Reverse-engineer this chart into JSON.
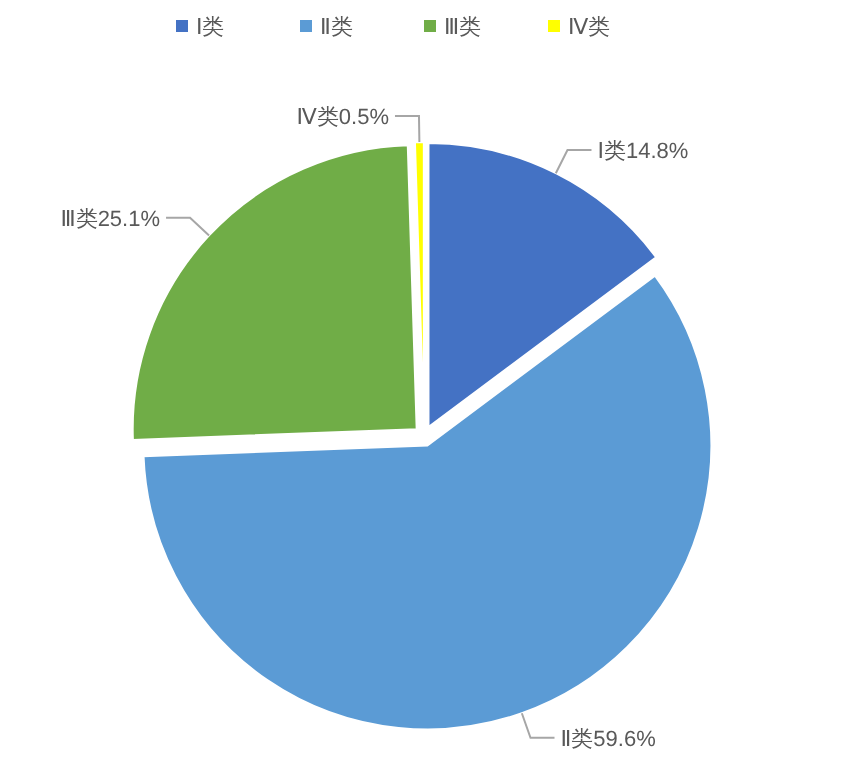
{
  "chart_data": {
    "type": "pie",
    "categories": [
      "Ⅰ类",
      "Ⅱ类",
      "Ⅲ类",
      "Ⅳ类"
    ],
    "values": [
      14.8,
      59.6,
      25.1,
      0.5
    ],
    "colors": [
      "#4472c4",
      "#5b9bd5",
      "#70ad47",
      "#ffff00"
    ],
    "value_labels": [
      "Ⅰ类14.8%",
      "Ⅱ类59.6%",
      "Ⅲ类25.1%",
      "Ⅳ类0.5%"
    ],
    "legend": "top"
  }
}
